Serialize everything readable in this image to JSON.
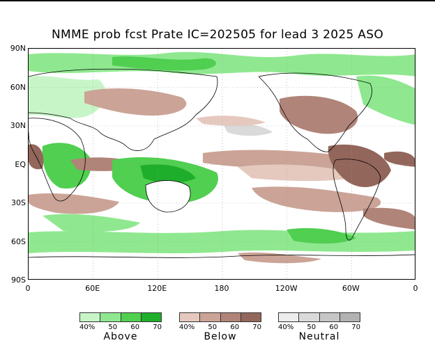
{
  "title": "NMME prob fcst Prate IC=202505 for lead 3 2025 ASO",
  "lat_labels": [
    "90N",
    "60N",
    "30N",
    "EQ",
    "30S",
    "60S",
    "90S"
  ],
  "lon_labels": [
    "0",
    "60E",
    "120E",
    "180",
    "120W",
    "60W",
    "0"
  ],
  "legend": [
    {
      "category": "Above",
      "ticks": [
        "40%",
        "50",
        "60",
        "70"
      ],
      "colors": [
        "#c8f5c8",
        "#8fe88f",
        "#50cf50",
        "#1fae2b"
      ]
    },
    {
      "category": "Below",
      "ticks": [
        "40%",
        "50",
        "60",
        "70"
      ],
      "colors": [
        "#e5c9be",
        "#cba497",
        "#b08478",
        "#93665b"
      ]
    },
    {
      "category": "Neutral",
      "ticks": [
        "40%",
        "50",
        "60",
        "70"
      ],
      "colors": [
        "#ececec",
        "#dadada",
        "#c6c6c6",
        "#b2b2b2"
      ]
    }
  ]
}
